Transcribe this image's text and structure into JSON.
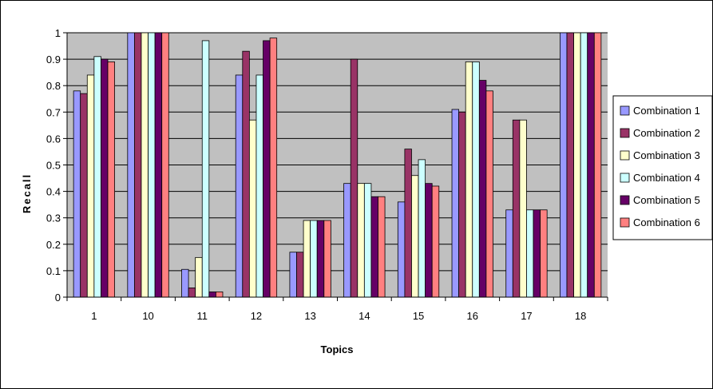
{
  "chart_data": {
    "type": "bar",
    "title": "",
    "xlabel": "Topics",
    "ylabel": "Recall",
    "ylim": [
      0,
      1
    ],
    "yticks": [
      "0",
      "0.1",
      "0.2",
      "0.3",
      "0.4",
      "0.5",
      "0.6",
      "0.7",
      "0.8",
      "0.9",
      "1"
    ],
    "categories": [
      "1",
      "10",
      "11",
      "12",
      "13",
      "14",
      "15",
      "16",
      "17",
      "18"
    ],
    "grid": true,
    "legend": "right",
    "plot_background": "#c0c0c0",
    "series": [
      {
        "name": "Combination 1",
        "color": "#9999ff",
        "values": [
          0.78,
          1.0,
          0.105,
          0.84,
          0.17,
          0.43,
          0.36,
          0.71,
          0.33,
          1.0
        ]
      },
      {
        "name": "Combination 2",
        "color": "#993366",
        "values": [
          0.77,
          1.0,
          0.035,
          0.93,
          0.17,
          0.9,
          0.56,
          0.7,
          0.67,
          1.0
        ]
      },
      {
        "name": "Combination 3",
        "color": "#ffffcc",
        "values": [
          0.84,
          1.0,
          0.15,
          0.67,
          0.29,
          0.43,
          0.46,
          0.89,
          0.67,
          1.0
        ]
      },
      {
        "name": "Combination 4",
        "color": "#ccffff",
        "values": [
          0.91,
          1.0,
          0.97,
          0.84,
          0.29,
          0.43,
          0.52,
          0.89,
          0.33,
          1.0
        ]
      },
      {
        "name": "Combination 5",
        "color": "#660066",
        "values": [
          0.9,
          1.0,
          0.02,
          0.97,
          0.29,
          0.38,
          0.43,
          0.82,
          0.33,
          1.0
        ]
      },
      {
        "name": "Combination 6",
        "color": "#ff8080",
        "values": [
          0.89,
          1.0,
          0.02,
          0.98,
          0.29,
          0.38,
          0.42,
          0.78,
          0.33,
          1.0
        ]
      }
    ]
  }
}
